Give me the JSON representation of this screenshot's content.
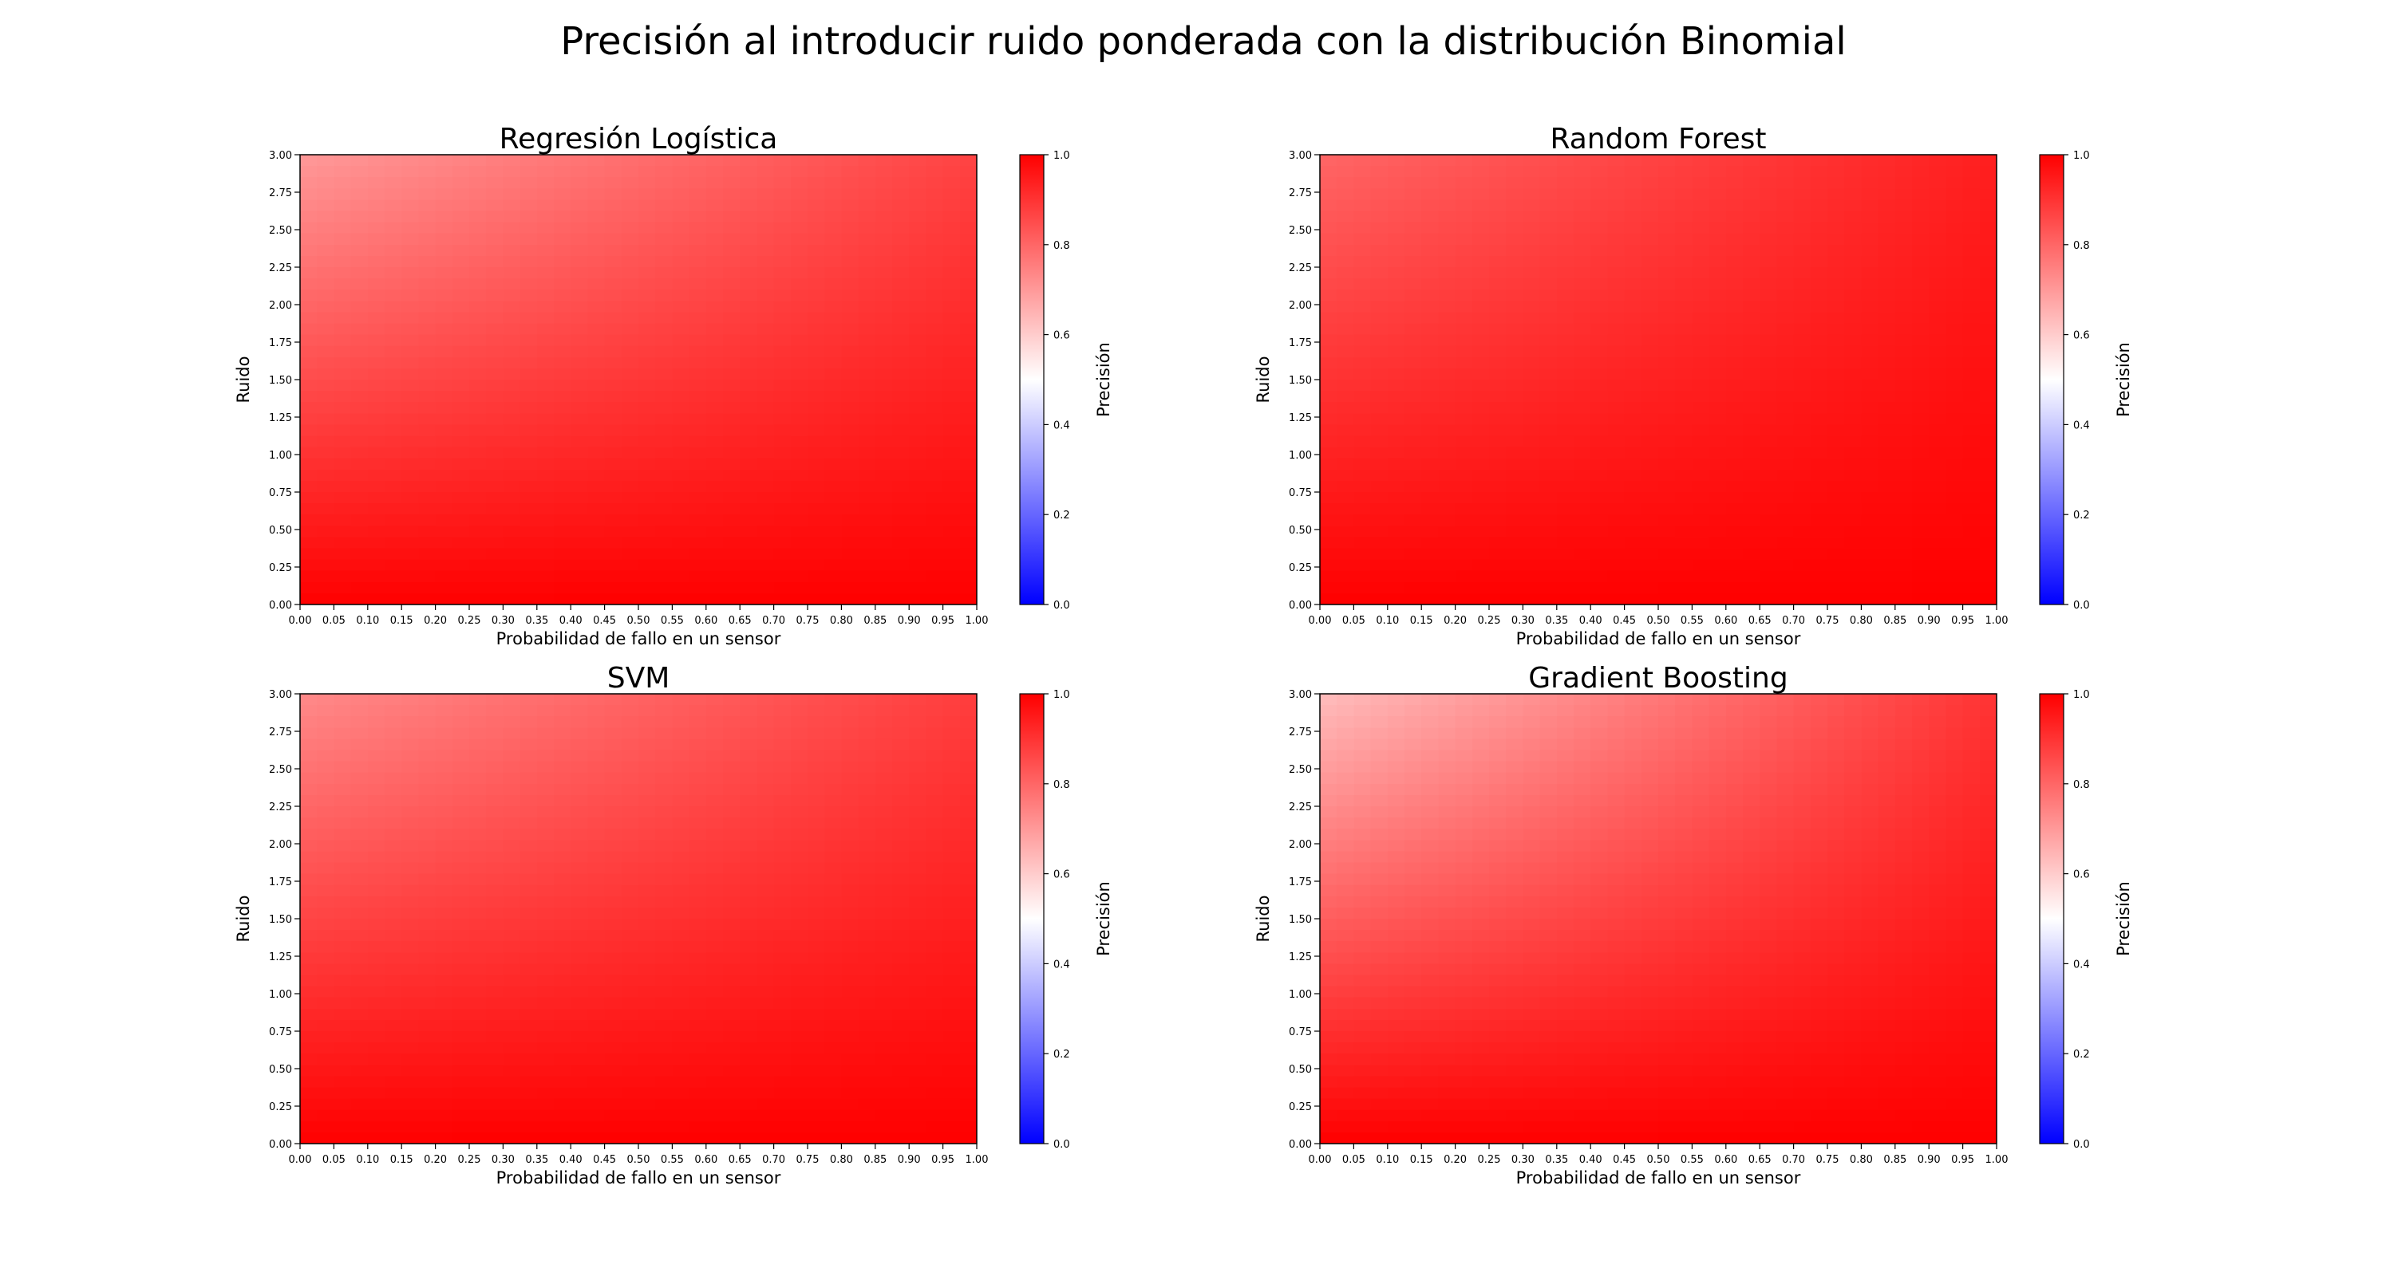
{
  "figure": {
    "title": "Precisión al introducir ruido ponderada con la distribución Binomial",
    "colorbar_label": "Precisión",
    "colormap": {
      "low": "#0000ff",
      "mid": "#ffffff",
      "high": "#ff0000"
    },
    "colorbar_ticks": [
      "0.0",
      "0.2",
      "0.4",
      "0.6",
      "0.8",
      "1.0"
    ],
    "xticks": [
      "0.00",
      "0.05",
      "0.10",
      "0.15",
      "0.20",
      "0.25",
      "0.30",
      "0.35",
      "0.40",
      "0.45",
      "0.50",
      "0.55",
      "0.60",
      "0.65",
      "0.70",
      "0.75",
      "0.80",
      "0.85",
      "0.90",
      "0.95",
      "1.00"
    ],
    "yticks": [
      "0.00",
      "0.25",
      "0.50",
      "0.75",
      "1.00",
      "1.25",
      "1.50",
      "1.75",
      "2.00",
      "2.25",
      "2.50",
      "2.75",
      "3.00"
    ]
  },
  "chart_data": [
    {
      "type": "heatmap",
      "title": "Regresión Logística",
      "xlabel": "Probabilidad de fallo en un sensor",
      "ylabel": "Ruido",
      "xlim": [
        0,
        1
      ],
      "ylim": [
        0,
        3
      ],
      "clim": [
        0,
        1
      ],
      "corner_values": {
        "x0_y0": 1.0,
        "x1_y0": 1.0,
        "x0_y3": 0.7,
        "x1_y3": 0.87
      }
    },
    {
      "type": "heatmap",
      "title": "Random Forest",
      "xlabel": "Probabilidad de fallo en un sensor",
      "ylabel": "Ruido",
      "xlim": [
        0,
        1
      ],
      "ylim": [
        0,
        3
      ],
      "clim": [
        0,
        1
      ],
      "corner_values": {
        "x0_y0": 1.0,
        "x1_y0": 1.0,
        "x0_y3": 0.8,
        "x1_y3": 0.94
      }
    },
    {
      "type": "heatmap",
      "title": "SVM",
      "xlabel": "Probabilidad de fallo en un sensor",
      "ylabel": "Ruido",
      "xlim": [
        0,
        1
      ],
      "ylim": [
        0,
        3
      ],
      "clim": [
        0,
        1
      ],
      "corner_values": {
        "x0_y0": 1.0,
        "x1_y0": 1.0,
        "x0_y3": 0.73,
        "x1_y3": 0.88
      }
    },
    {
      "type": "heatmap",
      "title": "Gradient Boosting",
      "xlabel": "Probabilidad de fallo en un sensor",
      "ylabel": "Ruido",
      "xlim": [
        0,
        1
      ],
      "ylim": [
        0,
        3
      ],
      "clim": [
        0,
        1
      ],
      "corner_values": {
        "x0_y0": 1.0,
        "x1_y0": 1.0,
        "x0_y3": 0.63,
        "x1_y3": 0.9
      }
    }
  ]
}
